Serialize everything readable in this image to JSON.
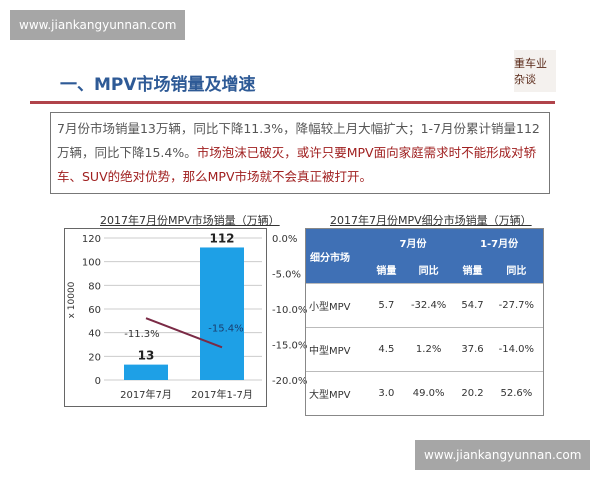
{
  "watermark_top": "www.jiankangyunnan.com",
  "watermark_bottom": "www.jiankangyunnan.com",
  "logo_text": "重车业杂谈",
  "title": "一、MPV市场销量及增速",
  "summary": {
    "normal": "7月份市场销量13万辆，同比下降11.3%，降幅较上月大幅扩大；1-7月份累计销量112万辆，同比下降15.4%。",
    "highlight": "市场泡沫已破灭，或许只要MPV面向家庭需求时不能形成对轿车、SUV的绝对优势，那么MPV市场就不会真正被打开。"
  },
  "colors": {
    "title": "#2e5a96",
    "accent_line": "#b0434a",
    "bar": "#1ea0e6",
    "line": "#7a2a45",
    "table_header": "#3f70b5",
    "highlight_text": "#a02020"
  },
  "chart_data": {
    "type": "bar+line",
    "title": "2017年7月份MPV市场销量（万辆）",
    "categories": [
      "2017年7月",
      "2017年1-7月"
    ],
    "ylabel": "x 10000",
    "ylim": [
      0,
      120
    ],
    "yticks": [
      "120",
      "100",
      "80",
      "60",
      "40",
      "20",
      "0"
    ],
    "y2lim": [
      -20,
      0
    ],
    "y2ticks": [
      "0.0%",
      "-5.0%",
      "-10.0%",
      "-15.0%",
      "-20.0%"
    ],
    "series": [
      {
        "type": "bar",
        "values": [
          13,
          112
        ],
        "labels": [
          "13",
          "112"
        ]
      },
      {
        "type": "line",
        "values": [
          -11.3,
          -15.4
        ],
        "labels": [
          "-11.3%",
          "-15.4%"
        ]
      }
    ],
    "grid": true
  },
  "table": {
    "title": "2017年7月份MPV细分市场销量（万辆）",
    "col_segment": "细分市场",
    "group1": "7月份",
    "group2": "1-7月份",
    "sub": [
      "销量",
      "同比",
      "销量",
      "同比"
    ],
    "rows": [
      [
        "小型MPV",
        "5.7",
        "-32.4%",
        "54.7",
        "-27.7%"
      ],
      [
        "中型MPV",
        "4.5",
        "1.2%",
        "37.6",
        "-14.0%"
      ],
      [
        "大型MPV",
        "3.0",
        "49.0%",
        "20.2",
        "52.6%"
      ]
    ]
  }
}
